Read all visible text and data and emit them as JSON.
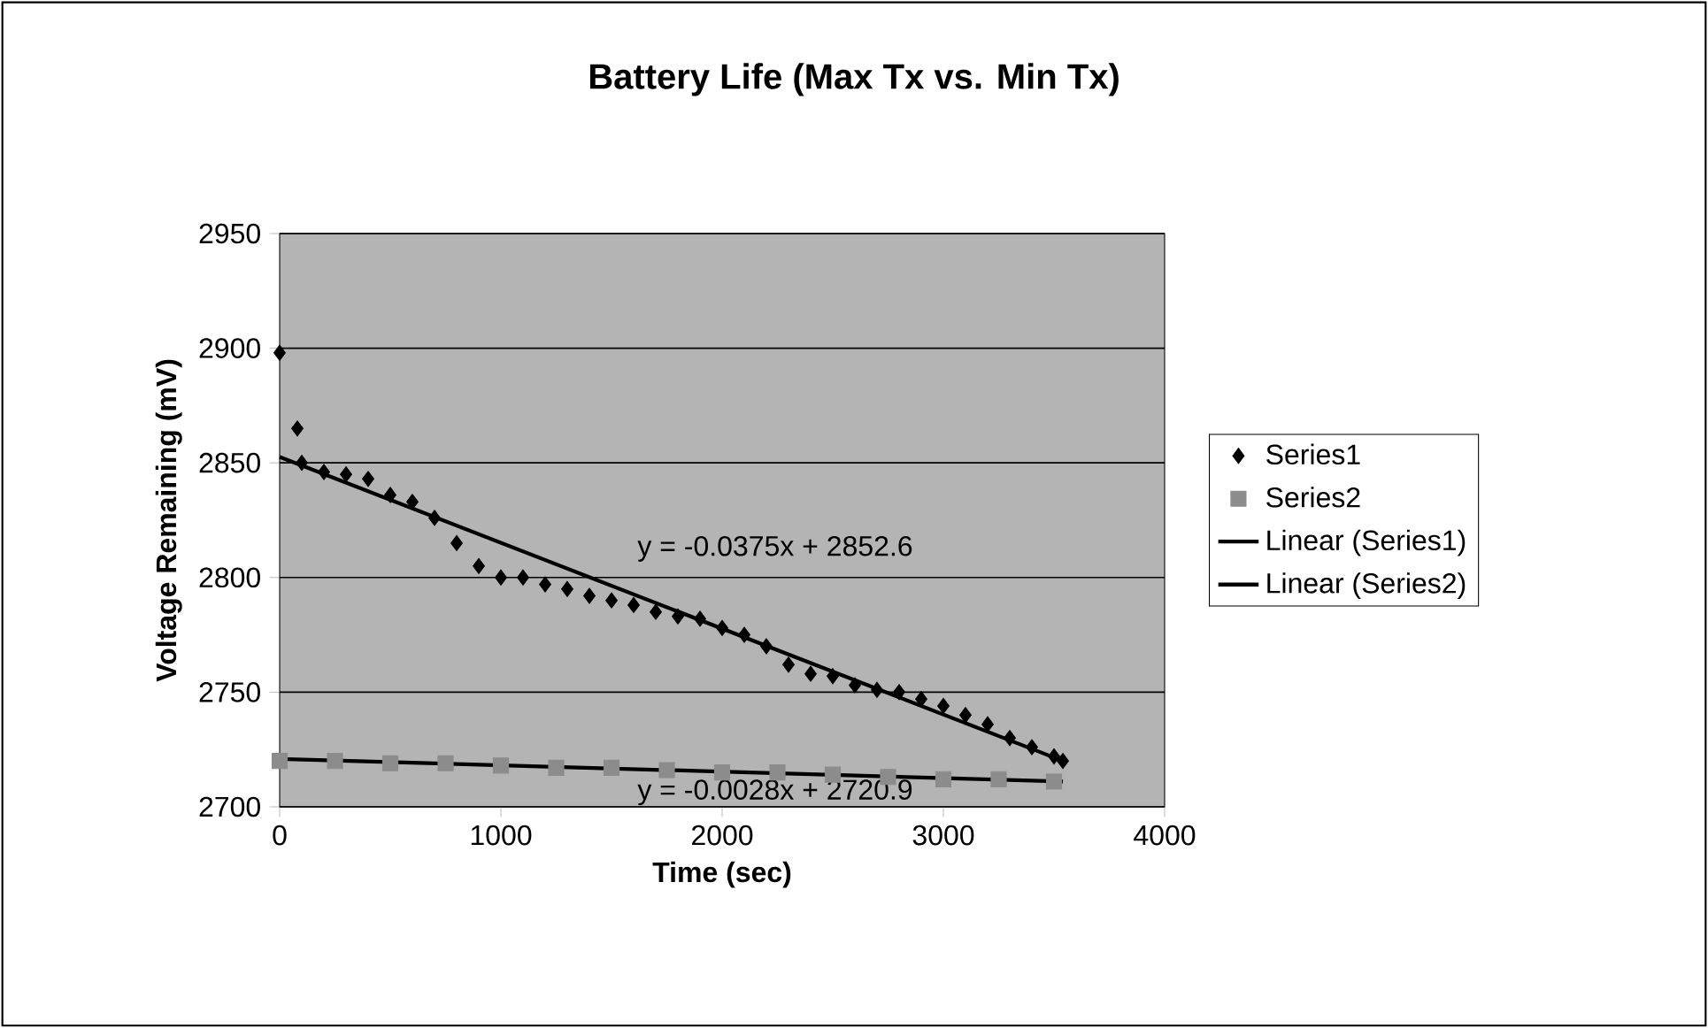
{
  "chart_data": {
    "type": "scatter",
    "title": "Battery Life (Max Tx vs. Min Tx)",
    "xlabel": "Time (sec)",
    "ylabel": "Voltage Remaining (mV)",
    "xlim": [
      0,
      4000
    ],
    "ylim": [
      2700,
      2950
    ],
    "xticks": [
      0,
      1000,
      2000,
      3000,
      4000
    ],
    "yticks": [
      2700,
      2750,
      2800,
      2850,
      2900,
      2950
    ],
    "grid": "y",
    "legend": "right",
    "series": [
      {
        "name": "Series1",
        "marker": "diamond",
        "color": "#000000",
        "x": [
          0,
          80,
          100,
          200,
          300,
          400,
          500,
          600,
          700,
          800,
          900,
          1000,
          1100,
          1200,
          1300,
          1400,
          1500,
          1600,
          1700,
          1800,
          1900,
          2000,
          2100,
          2200,
          2300,
          2400,
          2500,
          2600,
          2700,
          2800,
          2900,
          3000,
          3100,
          3200,
          3300,
          3400,
          3500,
          3540
        ],
        "values": [
          2898,
          2865,
          2850,
          2846,
          2845,
          2843,
          2836,
          2833,
          2826,
          2815,
          2805,
          2800,
          2800,
          2797,
          2795,
          2792,
          2790,
          2788,
          2785,
          2783,
          2782,
          2778,
          2775,
          2770,
          2762,
          2758,
          2757,
          2753,
          2751,
          2750,
          2747,
          2744,
          2740,
          2736,
          2730,
          2726,
          2722,
          2720
        ]
      },
      {
        "name": "Series2",
        "marker": "square",
        "color": "#8c8c8c",
        "x": [
          0,
          250,
          500,
          750,
          1000,
          1250,
          1500,
          1750,
          2000,
          2250,
          2500,
          2750,
          3000,
          3250,
          3500
        ],
        "values": [
          2720,
          2720,
          2719,
          2719,
          2718,
          2717,
          2717,
          2716,
          2715,
          2715,
          2714,
          2713,
          2712,
          2712,
          2711
        ]
      },
      {
        "name": "Linear (Series1)",
        "type": "line",
        "marker": "none",
        "color": "#000000",
        "x": [
          0,
          3540
        ],
        "values": [
          2852.6,
          2720
        ]
      },
      {
        "name": "Linear (Series2)",
        "type": "line",
        "marker": "none",
        "color": "#000000",
        "x": [
          0,
          3540
        ],
        "values": [
          2720.9,
          2711.0
        ]
      }
    ],
    "annotations": [
      "y = -0.0375x + 2852.6",
      "y = -0.0028x + 2720.9"
    ]
  }
}
